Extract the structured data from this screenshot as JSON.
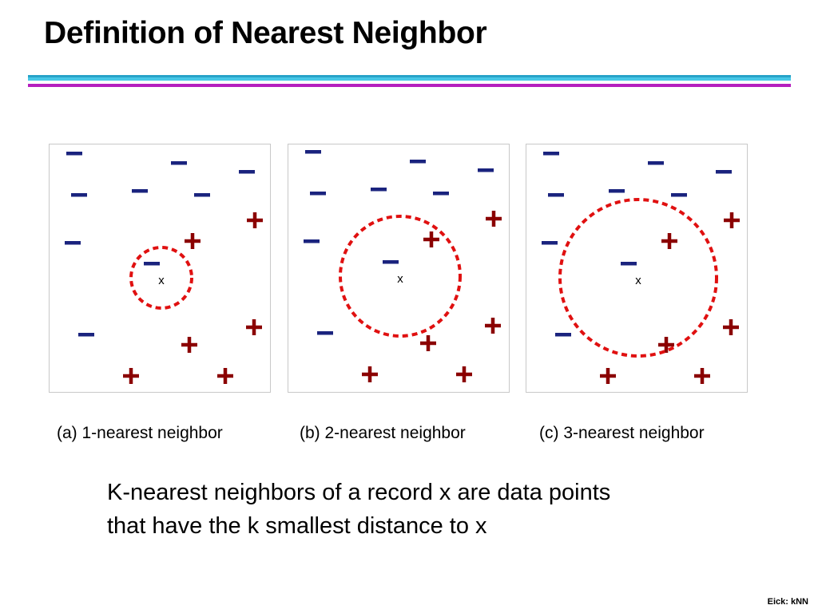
{
  "slide": {
    "title": "Definition of Nearest Neighbor",
    "definition_lines": [
      "K-nearest neighbors of a record x are data points",
      "that have the k smallest distance to x"
    ],
    "footer": "Eick: kNN"
  },
  "colors": {
    "negative": "#1a237e",
    "positive": "#8b0000",
    "circle": "#e01010",
    "panel_border": "#c8c8c8",
    "rule_cyan_dark": "#27a3c8",
    "rule_cyan_light": "#46c7e6",
    "rule_magenta": "#b51fbe"
  },
  "icons": {
    "negative": "minus-sign",
    "positive": "plus-sign",
    "query": "x-mark",
    "neighborhood": "dashed-circle"
  },
  "diagram": {
    "symbols": {
      "negative": "–",
      "positive": "+",
      "query": "x"
    },
    "panels": [
      {
        "id": "a",
        "caption": "(a) 1-nearest neighbor",
        "k": 1
      },
      {
        "id": "b",
        "caption": "(b) 2-nearest neighbor",
        "k": 2
      },
      {
        "id": "c",
        "caption": "(c) 3-nearest neighbor",
        "k": 3
      }
    ]
  }
}
